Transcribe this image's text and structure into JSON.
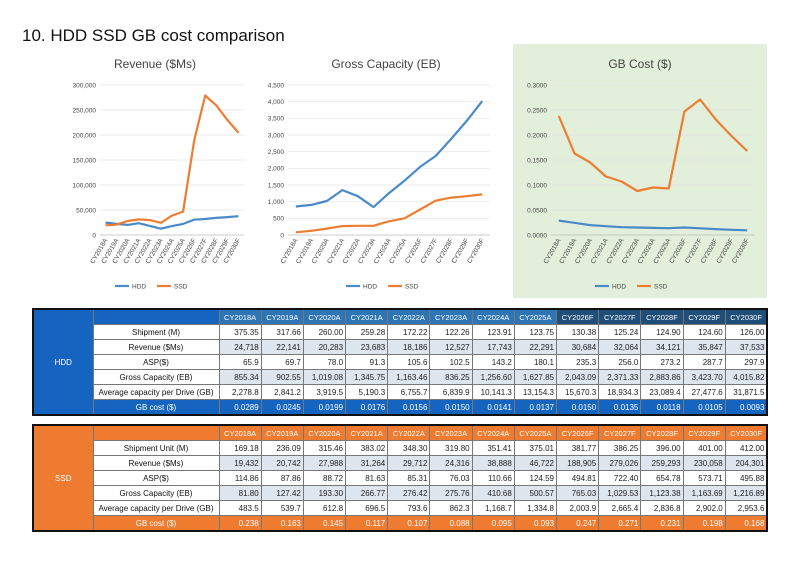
{
  "title": "10. HDD SSD GB cost comparison",
  "colors": {
    "hdd": "#4a8ac9",
    "ssd": "#ed7d31",
    "hdd_section": "#1565c0",
    "ssd_section": "#ee7b2f",
    "gbcost_bg": "#e2efda",
    "header_dark": "#1f4e79",
    "header_light": "#2e75b6"
  },
  "chart_data": [
    {
      "type": "line",
      "title": "Revenue ($Ms)",
      "categories": [
        "CY2018A",
        "CY2019A",
        "CY2020A",
        "CY2021A",
        "CY2022A",
        "CY2023A",
        "CY2024A",
        "CY2025A",
        "CY2026F",
        "CY2027F",
        "CY2028F",
        "CY2029F",
        "CY2030F"
      ],
      "yticks": [
        "0",
        "50,000",
        "100,000",
        "150,000",
        "200,000",
        "250,000",
        "300,000"
      ],
      "ylim": [
        0,
        300000
      ],
      "series": [
        {
          "name": "HDD",
          "values": [
            24718,
            22141,
            20283,
            23683,
            18186,
            12527,
            17743,
            22291,
            30684,
            32064,
            34121,
            35847,
            37533
          ]
        },
        {
          "name": "SSD",
          "values": [
            19432,
            20742,
            27988,
            31264,
            29712,
            24316,
            38888,
            46722,
            188905,
            279026,
            259293,
            230058,
            204301
          ]
        }
      ],
      "legend": "bottom"
    },
    {
      "type": "line",
      "title": "Gross Capacity (EB)",
      "categories": [
        "CY2018A",
        "CY2019A",
        "CY2020A",
        "CY2021A",
        "CY2022A",
        "CY2023A",
        "CY2024A",
        "CY2025A",
        "CY2026F",
        "CY2027F",
        "CY2028F",
        "CY2029F",
        "CY2030F"
      ],
      "yticks": [
        "0",
        "500",
        "1,000",
        "1,500",
        "2,000",
        "2,500",
        "3,000",
        "3,500",
        "4,000",
        "4,500"
      ],
      "ylim": [
        0,
        4500
      ],
      "series": [
        {
          "name": "HDD",
          "values": [
            855.34,
            902.55,
            1019.08,
            1345.75,
            1163.46,
            836.25,
            1256.6,
            1627.85,
            2043.09,
            2371.33,
            2883.86,
            3423.7,
            4015.82
          ]
        },
        {
          "name": "SSD",
          "values": [
            81.8,
            127.42,
            193.3,
            266.77,
            276.42,
            275.76,
            410.68,
            500.57,
            765.03,
            1029.53,
            1123.38,
            1163.69,
            1216.89
          ]
        }
      ],
      "legend": "bottom"
    },
    {
      "type": "line",
      "title": "GB Cost ($)",
      "categories": [
        "CY2018A",
        "CY2019A",
        "CY2020A",
        "CY2021A",
        "CY2022A",
        "CY2023A",
        "CY2024A",
        "CY2025A",
        "CY2026F",
        "CY2027F",
        "CY2028F",
        "CY2029F",
        "CY2030F"
      ],
      "yticks": [
        "0.0000",
        "0.0500",
        "0.1000",
        "0.1500",
        "0.2000",
        "0.2500",
        "0.3000"
      ],
      "ylim": [
        0,
        0.3
      ],
      "series": [
        {
          "name": "HDD",
          "values": [
            0.0289,
            0.0245,
            0.0199,
            0.0176,
            0.0156,
            0.015,
            0.0141,
            0.0137,
            0.015,
            0.0135,
            0.0118,
            0.0105,
            0.0093
          ]
        },
        {
          "name": "SSD",
          "values": [
            0.238,
            0.163,
            0.145,
            0.117,
            0.107,
            0.088,
            0.095,
            0.093,
            0.247,
            0.271,
            0.231,
            0.198,
            0.168
          ]
        }
      ],
      "legend": "bottom",
      "background": "#e2efda"
    }
  ],
  "tables": [
    {
      "section": "HDD",
      "years": [
        "CY2018A",
        "CY2019A",
        "CY2020A",
        "CY2021A",
        "CY2022A",
        "CY2023A",
        "CY2024A",
        "CY2025A",
        "CY2026F",
        "CY2027F",
        "CY2028F",
        "CY2029F",
        "CY2030F"
      ],
      "rows": [
        {
          "label": "Shipment (M)",
          "values": [
            "375.35",
            "317.66",
            "260.00",
            "259.28",
            "172.22",
            "122.26",
            "123.91",
            "123.75",
            "130.38",
            "125.24",
            "124.90",
            "124.60",
            "126.00"
          ]
        },
        {
          "label": "Revenue ($Ms)",
          "values": [
            "24,718",
            "22,141",
            "20,283",
            "23,683",
            "18,186",
            "12,527",
            "17,743",
            "22,291",
            "30,684",
            "32,064",
            "34,121",
            "35,847",
            "37,533"
          ]
        },
        {
          "label": "ASP($)",
          "values": [
            "65.9",
            "69.7",
            "78.0",
            "91.3",
            "105.6",
            "102.5",
            "143.2",
            "180.1",
            "235.3",
            "256.0",
            "273.2",
            "287.7",
            "297.9"
          ]
        },
        {
          "label": "Gross Capacity (EB)",
          "values": [
            "855.34",
            "902.55",
            "1,019.08",
            "1,345.75",
            "1,163.46",
            "836.25",
            "1,256.60",
            "1,627.85",
            "2,043.09",
            "2,371.33",
            "2,883.86",
            "3,423.70",
            "4,015.82"
          ]
        },
        {
          "label": "Average capacity per Drive (GB)",
          "values": [
            "2,278.8",
            "2,841.2",
            "3,919.5",
            "5,190.3",
            "6,755.7",
            "6,839.9",
            "10,141.3",
            "13,154.3",
            "15,670.3",
            "18,934.3",
            "23,089.4",
            "27,477.6",
            "31,871.5"
          ]
        }
      ],
      "gb_row": {
        "label": "GB cost ($)",
        "values": [
          "0.0289",
          "0.0245",
          "0.0199",
          "0.0176",
          "0.0156",
          "0.0150",
          "0.0141",
          "0.0137",
          "0.0150",
          "0.0135",
          "0.0118",
          "0.0105",
          "0.0093"
        ]
      }
    },
    {
      "section": "SSD",
      "years": [
        "CY2018A",
        "CY2019A",
        "CY2020A",
        "CY2021A",
        "CY2022A",
        "CY2023A",
        "CY2024A",
        "CY2025A",
        "CY2026F",
        "CY2027F",
        "CY2028F",
        "CY2029F",
        "CY2030F"
      ],
      "rows": [
        {
          "label": "Shipment Unit (M)",
          "values": [
            "169.18",
            "236.09",
            "315.46",
            "383.02",
            "348.30",
            "319.80",
            "351.41",
            "375.01",
            "381.77",
            "386.25",
            "396.00",
            "401.00",
            "412.00"
          ]
        },
        {
          "label": "Revenue ($Ms)",
          "values": [
            "19,432",
            "20,742",
            "27,988",
            "31,264",
            "29,712",
            "24,316",
            "38,888",
            "46,722",
            "188,905",
            "279,026",
            "259,293",
            "230,058",
            "204,301"
          ]
        },
        {
          "label": "ASP($)",
          "values": [
            "114.86",
            "87.86",
            "88.72",
            "81.63",
            "85.31",
            "76.03",
            "110.66",
            "124.59",
            "494.81",
            "722.40",
            "654.78",
            "573.71",
            "495.88"
          ]
        },
        {
          "label": "Gross Capacity (EB)",
          "values": [
            "81.80",
            "127.42",
            "193.30",
            "266.77",
            "276.42",
            "275.76",
            "410.68",
            "500.57",
            "765.03",
            "1,029.53",
            "1,123.38",
            "1,163.69",
            "1,216.89"
          ]
        },
        {
          "label": "Average capacity per Drive (GB)",
          "values": [
            "483.5",
            "539.7",
            "612.8",
            "696.5",
            "793.6",
            "862.3",
            "1,168.7",
            "1,334.8",
            "2,003.9",
            "2,665.4",
            "2,836.8",
            "2,902.0",
            "2,953.6"
          ]
        }
      ],
      "gb_row": {
        "label": "GB cost ($)",
        "values": [
          "0.238",
          "0.163",
          "0.145",
          "0.117",
          "0.107",
          "0.088",
          "0.095",
          "0.093",
          "0.247",
          "0.271",
          "0.231",
          "0.198",
          "0.168"
        ]
      }
    }
  ]
}
